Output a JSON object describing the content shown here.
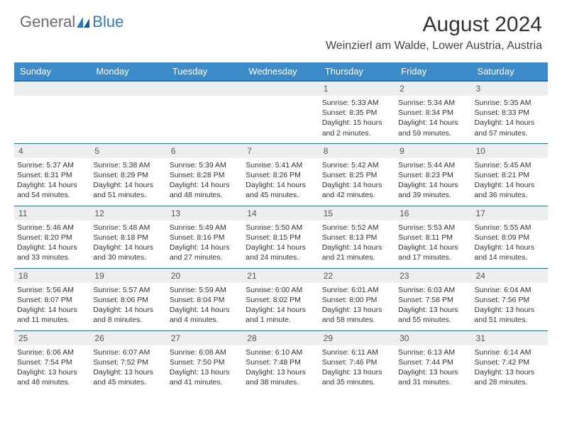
{
  "logo": {
    "text1": "General",
    "text2": "Blue"
  },
  "title": "August 2024",
  "location": "Weinzierl am Walde, Lower Austria, Austria",
  "weekdays": [
    "Sunday",
    "Monday",
    "Tuesday",
    "Wednesday",
    "Thursday",
    "Friday",
    "Saturday"
  ],
  "colors": {
    "header_bg": "#3b8bc9",
    "header_border": "#2b6fa3",
    "daynum_bg": "#eceeef",
    "logo_gray": "#6b6b6b",
    "logo_blue": "#2b7bbf"
  },
  "weeks": [
    [
      null,
      null,
      null,
      null,
      {
        "n": "1",
        "sr": "5:33 AM",
        "ss": "8:35 PM",
        "dl": "15 hours and 2 minutes."
      },
      {
        "n": "2",
        "sr": "5:34 AM",
        "ss": "8:34 PM",
        "dl": "14 hours and 59 minutes."
      },
      {
        "n": "3",
        "sr": "5:35 AM",
        "ss": "8:33 PM",
        "dl": "14 hours and 57 minutes."
      }
    ],
    [
      {
        "n": "4",
        "sr": "5:37 AM",
        "ss": "8:31 PM",
        "dl": "14 hours and 54 minutes."
      },
      {
        "n": "5",
        "sr": "5:38 AM",
        "ss": "8:29 PM",
        "dl": "14 hours and 51 minutes."
      },
      {
        "n": "6",
        "sr": "5:39 AM",
        "ss": "8:28 PM",
        "dl": "14 hours and 48 minutes."
      },
      {
        "n": "7",
        "sr": "5:41 AM",
        "ss": "8:26 PM",
        "dl": "14 hours and 45 minutes."
      },
      {
        "n": "8",
        "sr": "5:42 AM",
        "ss": "8:25 PM",
        "dl": "14 hours and 42 minutes."
      },
      {
        "n": "9",
        "sr": "5:44 AM",
        "ss": "8:23 PM",
        "dl": "14 hours and 39 minutes."
      },
      {
        "n": "10",
        "sr": "5:45 AM",
        "ss": "8:21 PM",
        "dl": "14 hours and 36 minutes."
      }
    ],
    [
      {
        "n": "11",
        "sr": "5:46 AM",
        "ss": "8:20 PM",
        "dl": "14 hours and 33 minutes."
      },
      {
        "n": "12",
        "sr": "5:48 AM",
        "ss": "8:18 PM",
        "dl": "14 hours and 30 minutes."
      },
      {
        "n": "13",
        "sr": "5:49 AM",
        "ss": "8:16 PM",
        "dl": "14 hours and 27 minutes."
      },
      {
        "n": "14",
        "sr": "5:50 AM",
        "ss": "8:15 PM",
        "dl": "14 hours and 24 minutes."
      },
      {
        "n": "15",
        "sr": "5:52 AM",
        "ss": "8:13 PM",
        "dl": "14 hours and 21 minutes."
      },
      {
        "n": "16",
        "sr": "5:53 AM",
        "ss": "8:11 PM",
        "dl": "14 hours and 17 minutes."
      },
      {
        "n": "17",
        "sr": "5:55 AM",
        "ss": "8:09 PM",
        "dl": "14 hours and 14 minutes."
      }
    ],
    [
      {
        "n": "18",
        "sr": "5:56 AM",
        "ss": "8:07 PM",
        "dl": "14 hours and 11 minutes."
      },
      {
        "n": "19",
        "sr": "5:57 AM",
        "ss": "8:06 PM",
        "dl": "14 hours and 8 minutes."
      },
      {
        "n": "20",
        "sr": "5:59 AM",
        "ss": "8:04 PM",
        "dl": "14 hours and 4 minutes."
      },
      {
        "n": "21",
        "sr": "6:00 AM",
        "ss": "8:02 PM",
        "dl": "14 hours and 1 minute."
      },
      {
        "n": "22",
        "sr": "6:01 AM",
        "ss": "8:00 PM",
        "dl": "13 hours and 58 minutes."
      },
      {
        "n": "23",
        "sr": "6:03 AM",
        "ss": "7:58 PM",
        "dl": "13 hours and 55 minutes."
      },
      {
        "n": "24",
        "sr": "6:04 AM",
        "ss": "7:56 PM",
        "dl": "13 hours and 51 minutes."
      }
    ],
    [
      {
        "n": "25",
        "sr": "6:06 AM",
        "ss": "7:54 PM",
        "dl": "13 hours and 48 minutes."
      },
      {
        "n": "26",
        "sr": "6:07 AM",
        "ss": "7:52 PM",
        "dl": "13 hours and 45 minutes."
      },
      {
        "n": "27",
        "sr": "6:08 AM",
        "ss": "7:50 PM",
        "dl": "13 hours and 41 minutes."
      },
      {
        "n": "28",
        "sr": "6:10 AM",
        "ss": "7:48 PM",
        "dl": "13 hours and 38 minutes."
      },
      {
        "n": "29",
        "sr": "6:11 AM",
        "ss": "7:46 PM",
        "dl": "13 hours and 35 minutes."
      },
      {
        "n": "30",
        "sr": "6:13 AM",
        "ss": "7:44 PM",
        "dl": "13 hours and 31 minutes."
      },
      {
        "n": "31",
        "sr": "6:14 AM",
        "ss": "7:42 PM",
        "dl": "13 hours and 28 minutes."
      }
    ]
  ],
  "labels": {
    "sunrise": "Sunrise:",
    "sunset": "Sunset:",
    "daylight": "Daylight:"
  }
}
